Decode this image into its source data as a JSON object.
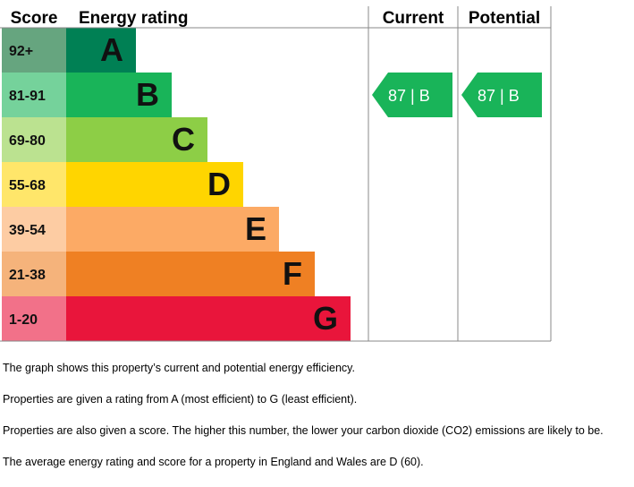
{
  "chart_data": {
    "type": "table",
    "headers": {
      "score": "Score",
      "rating": "Energy rating",
      "current": "Current",
      "potential": "Potential"
    },
    "bands": [
      {
        "letter": "A",
        "range": "92+",
        "min": 92,
        "max": 100,
        "color": "#008054",
        "score_color": "#66a57f"
      },
      {
        "letter": "B",
        "range": "81-91",
        "min": 81,
        "max": 91,
        "color": "#19b459",
        "score_color": "#75d29b"
      },
      {
        "letter": "C",
        "range": "69-80",
        "min": 69,
        "max": 80,
        "color": "#8dce46",
        "score_color": "#bbe290"
      },
      {
        "letter": "D",
        "range": "55-68",
        "min": 55,
        "max": 68,
        "color": "#ffd500",
        "score_color": "#ffe66a"
      },
      {
        "letter": "E",
        "range": "39-54",
        "min": 39,
        "max": 54,
        "color": "#fcaa65",
        "score_color": "#fdcca3"
      },
      {
        "letter": "F",
        "range": "21-38",
        "min": 21,
        "max": 38,
        "color": "#ef8023",
        "score_color": "#f5b37b"
      },
      {
        "letter": "G",
        "range": "1-20",
        "min": 1,
        "max": 20,
        "color": "#e9153b",
        "score_color": "#f27189"
      }
    ],
    "current": {
      "score": 87,
      "letter": "B",
      "label": "87 |  B",
      "color": "#19b459"
    },
    "potential": {
      "score": 87,
      "letter": "B",
      "label": "87 |  B",
      "color": "#19b459"
    }
  },
  "notes": [
    "The graph shows this property’s current and potential energy efficiency.",
    "Properties are given a rating from A (most efficient) to G (least efficient).",
    "Properties are also given a score. The higher this number, the lower your carbon dioxide (CO2) emissions are likely to be.",
    "The average energy rating and score for a property in England and Wales are D (60)."
  ]
}
